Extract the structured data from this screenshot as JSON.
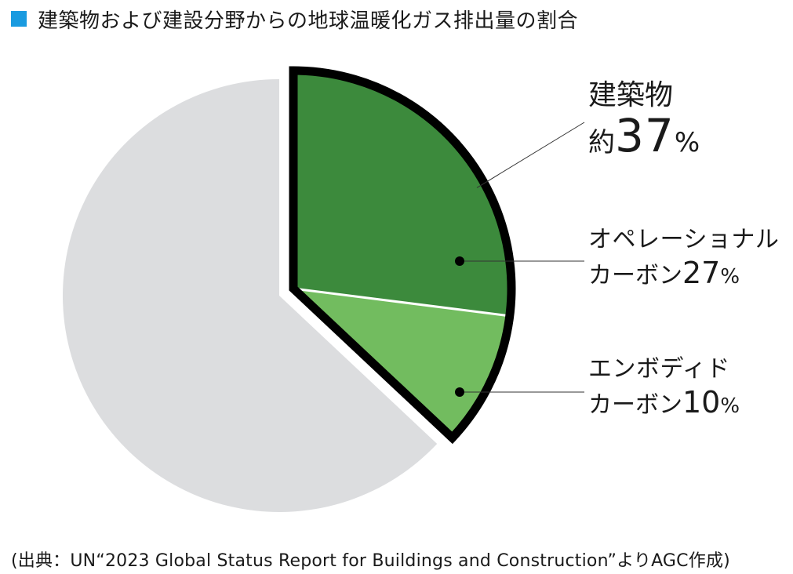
{
  "title": "建築物および建設分野からの地球温暖化ガス排出量の割合",
  "colors": {
    "marker": "#1a9be0",
    "rest": "#dcdddf",
    "building": "#3c8a3c",
    "operational": "#3c8a3c",
    "embodied": "#72bc5f",
    "outline": "#000000"
  },
  "chart_data": {
    "type": "pie",
    "slices": [
      {
        "label": "オペレーショナルカーボン",
        "value": 27
      },
      {
        "label": "エンボディドカーボン",
        "value": 10
      },
      {
        "label": "",
        "value": 63
      }
    ],
    "group": {
      "label": "建築物",
      "value": 37,
      "members": [
        "オペレーショナルカーボン",
        "エンボディドカーボン"
      ]
    }
  },
  "labels": {
    "building": {
      "name": "建築物",
      "prefix": "約",
      "value": "37",
      "unit": "%"
    },
    "operational": {
      "line1": "オペレーショナル",
      "line2_text": "カーボン",
      "value": "27",
      "unit": "%"
    },
    "embodied": {
      "line1": "エンボディド",
      "line2_text": "カーボン",
      "value": "10",
      "unit": "%"
    }
  },
  "source": "(出典：UN“2023 Global Status Report for Buildings and Construction”よりAGC作成)"
}
